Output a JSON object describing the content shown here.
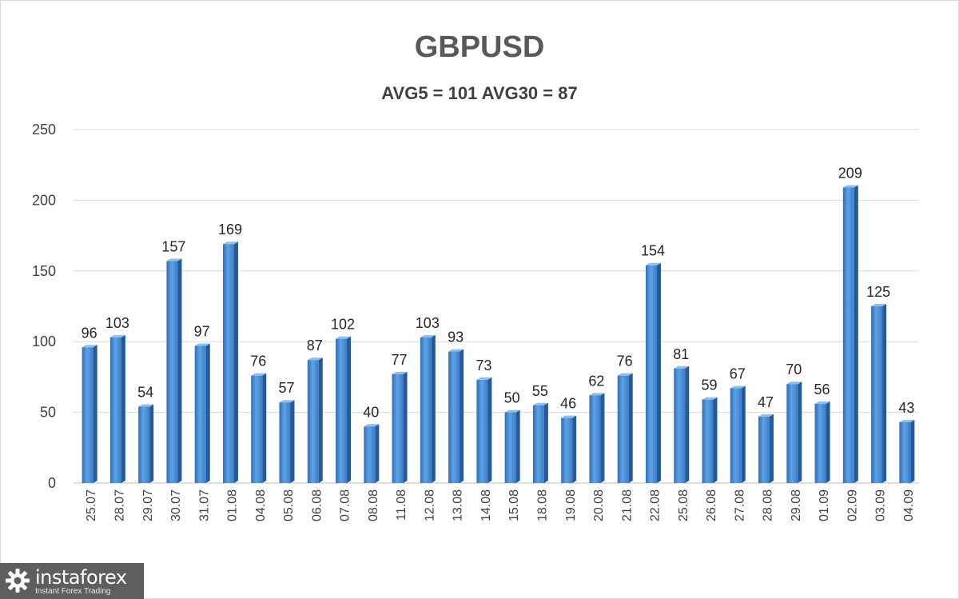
{
  "chart_data": {
    "type": "bar",
    "title": "GBPUSD",
    "subtitle": "AVG5 = 101 AVG30 = 87",
    "xlabel": "",
    "ylabel": "",
    "ylim": [
      0,
      250
    ],
    "yticks": [
      0,
      50,
      100,
      150,
      200,
      250
    ],
    "grid": true,
    "bar_color": "#4a8fd6",
    "categories": [
      "25.07",
      "28.07",
      "29.07",
      "30.07",
      "31.07",
      "01.08",
      "04.08",
      "05.08",
      "06.08",
      "07.08",
      "08.08",
      "11.08",
      "12.08",
      "13.08",
      "14.08",
      "15.08",
      "18.08",
      "19.08",
      "20.08",
      "21.08",
      "22.08",
      "25.08",
      "26.08",
      "27.08",
      "28.08",
      "29.08",
      "01.09",
      "02.09",
      "03.09",
      "04.09"
    ],
    "values": [
      96,
      103,
      54,
      157,
      97,
      169,
      76,
      57,
      87,
      102,
      40,
      77,
      103,
      93,
      73,
      50,
      55,
      46,
      62,
      76,
      154,
      81,
      59,
      67,
      47,
      70,
      56,
      209,
      125,
      43
    ]
  },
  "watermark": {
    "name": "instaforex",
    "tagline": "Instant Forex Trading"
  }
}
